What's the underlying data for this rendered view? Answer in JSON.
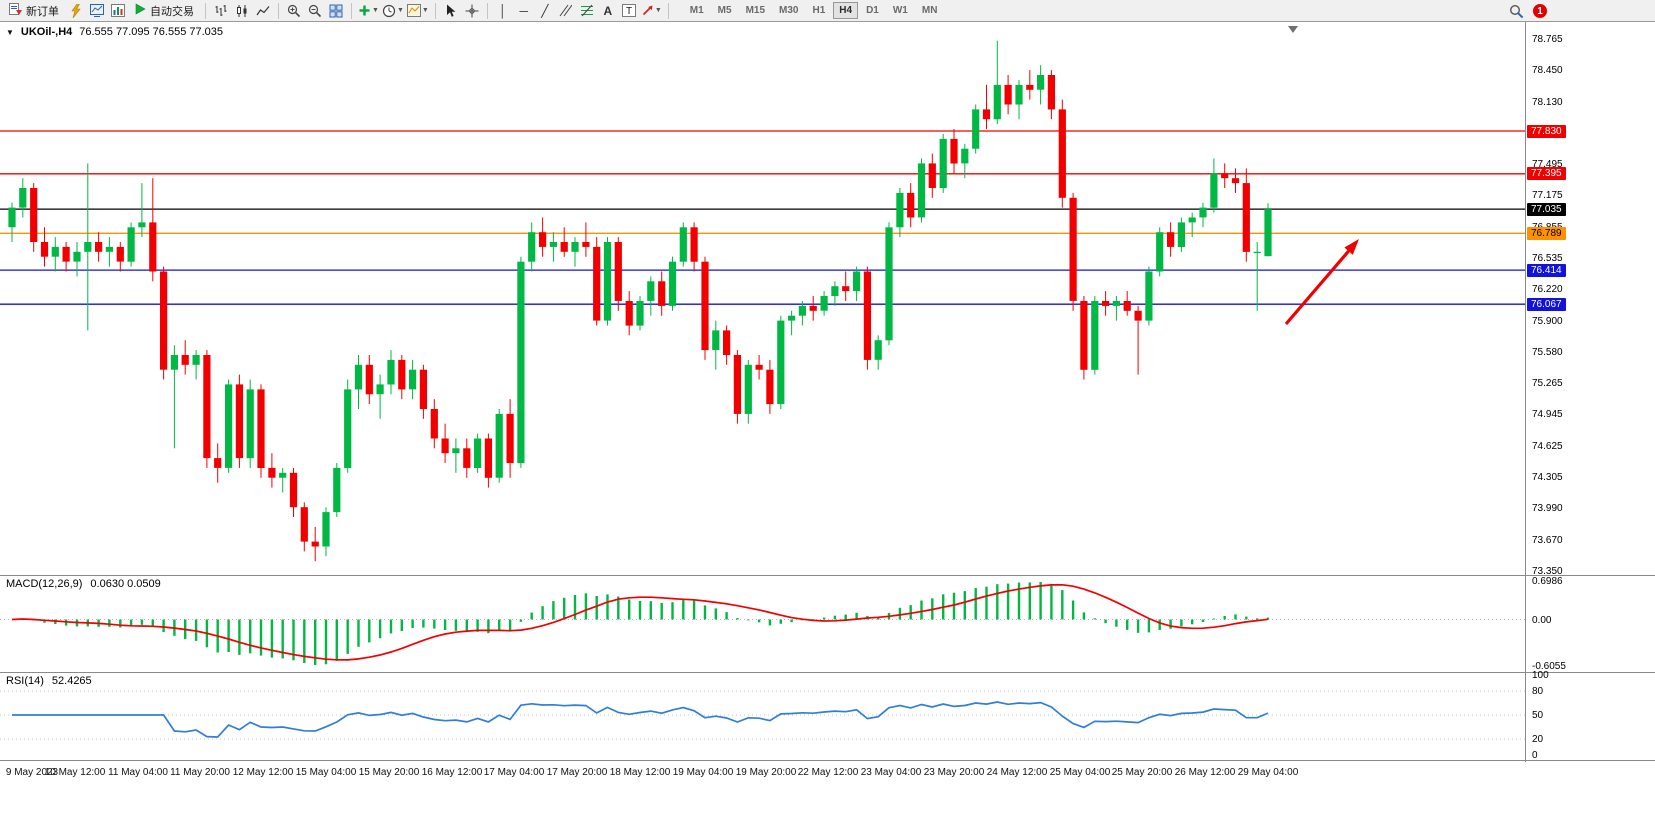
{
  "toolbar": {
    "new_order_label": "新订单",
    "auto_trading_label": "自动交易",
    "timeframes": [
      "M1",
      "M5",
      "M15",
      "M30",
      "H1",
      "H4",
      "D1",
      "W1",
      "MN"
    ],
    "active_timeframe": "H4",
    "notification_count": "1"
  },
  "chart": {
    "type": "candlestick",
    "symbol_label": "UKOil-,H4",
    "ohlc_label": "76.555 77.095 76.555 77.035",
    "up_color": "#00b843",
    "down_color": "#f20000",
    "price_max": 78.94,
    "price_min": 73.31,
    "price_axis": [
      "78.765",
      "78.450",
      "78.130",
      "77.495",
      "77.175",
      "76.855",
      "76.535",
      "76.220",
      "75.900",
      "75.580",
      "75.265",
      "74.945",
      "74.625",
      "74.305",
      "73.990",
      "73.670",
      "73.350"
    ],
    "hlines": [
      {
        "price": 77.83,
        "label": "77.830",
        "color": "#f20000",
        "text_color": "#ffffff"
      },
      {
        "price": 77.395,
        "label": "77.395",
        "color": "#f20000",
        "text_color": "#ffffff"
      },
      {
        "price": 77.035,
        "label": "77.035",
        "color": "#000000",
        "text_color": "#ffffff"
      },
      {
        "price": 76.789,
        "label": "76.789",
        "color": "#ff9000",
        "text_color": "#000000"
      },
      {
        "price": 76.414,
        "label": "76.414",
        "color": "#1212dd",
        "text_color": "#ffffff"
      },
      {
        "price": 76.067,
        "label": "76.067",
        "color": "#1212dd",
        "text_color": "#ffffff"
      }
    ],
    "candles": [
      [
        76.85,
        77.1,
        76.7,
        77.05
      ],
      [
        77.05,
        77.35,
        76.95,
        77.25
      ],
      [
        77.25,
        77.3,
        76.6,
        76.7
      ],
      [
        76.7,
        76.85,
        76.45,
        76.55
      ],
      [
        76.55,
        76.75,
        76.4,
        76.65
      ],
      [
        76.65,
        76.7,
        76.4,
        76.5
      ],
      [
        76.5,
        76.7,
        76.35,
        76.6
      ],
      [
        76.6,
        77.5,
        75.8,
        76.7
      ],
      [
        76.7,
        76.8,
        76.5,
        76.6
      ],
      [
        76.6,
        76.75,
        76.45,
        76.65
      ],
      [
        76.65,
        76.7,
        76.4,
        76.5
      ],
      [
        76.5,
        76.9,
        76.45,
        76.85
      ],
      [
        76.85,
        77.3,
        76.75,
        76.9
      ],
      [
        76.9,
        77.35,
        76.3,
        76.4
      ],
      [
        76.4,
        76.45,
        75.3,
        75.4
      ],
      [
        75.4,
        75.65,
        74.6,
        75.55
      ],
      [
        75.55,
        75.7,
        75.35,
        75.45
      ],
      [
        75.45,
        75.6,
        75.3,
        75.55
      ],
      [
        75.55,
        75.6,
        74.4,
        74.5
      ],
      [
        74.5,
        74.65,
        74.25,
        74.4
      ],
      [
        74.4,
        75.3,
        74.35,
        75.25
      ],
      [
        75.25,
        75.35,
        74.4,
        74.5
      ],
      [
        74.5,
        75.3,
        74.4,
        75.2
      ],
      [
        75.2,
        75.25,
        74.3,
        74.4
      ],
      [
        74.4,
        74.55,
        74.2,
        74.3
      ],
      [
        74.3,
        74.4,
        74.15,
        74.35
      ],
      [
        74.35,
        74.4,
        73.9,
        74.0
      ],
      [
        74.0,
        74.05,
        73.55,
        73.65
      ],
      [
        73.65,
        73.8,
        73.45,
        73.6
      ],
      [
        73.6,
        74.0,
        73.5,
        73.95
      ],
      [
        73.95,
        74.45,
        73.9,
        74.4
      ],
      [
        74.4,
        75.3,
        74.35,
        75.2
      ],
      [
        75.2,
        75.55,
        75.0,
        75.45
      ],
      [
        75.45,
        75.55,
        75.05,
        75.15
      ],
      [
        75.15,
        75.35,
        74.9,
        75.25
      ],
      [
        75.25,
        75.6,
        75.15,
        75.5
      ],
      [
        75.5,
        75.55,
        75.1,
        75.2
      ],
      [
        75.2,
        75.5,
        75.1,
        75.4
      ],
      [
        75.4,
        75.45,
        74.9,
        75.0
      ],
      [
        75.0,
        75.1,
        74.6,
        74.7
      ],
      [
        74.7,
        74.85,
        74.45,
        74.55
      ],
      [
        74.55,
        74.7,
        74.35,
        74.6
      ],
      [
        74.6,
        74.7,
        74.3,
        74.4
      ],
      [
        74.4,
        74.75,
        74.35,
        74.7
      ],
      [
        74.7,
        74.75,
        74.2,
        74.3
      ],
      [
        74.3,
        75.0,
        74.25,
        74.95
      ],
      [
        74.95,
        75.1,
        74.3,
        74.45
      ],
      [
        74.45,
        76.55,
        74.4,
        76.5
      ],
      [
        76.5,
        76.9,
        76.4,
        76.8
      ],
      [
        76.8,
        76.95,
        76.55,
        76.65
      ],
      [
        76.65,
        76.8,
        76.5,
        76.7
      ],
      [
        76.7,
        76.85,
        76.55,
        76.6
      ],
      [
        76.6,
        76.75,
        76.45,
        76.7
      ],
      [
        76.7,
        76.9,
        76.55,
        76.65
      ],
      [
        76.65,
        76.75,
        75.85,
        75.9
      ],
      [
        75.9,
        76.75,
        75.85,
        76.7
      ],
      [
        76.7,
        76.75,
        76.0,
        76.1
      ],
      [
        76.1,
        76.2,
        75.75,
        75.85
      ],
      [
        75.85,
        76.15,
        75.8,
        76.1
      ],
      [
        76.1,
        76.35,
        75.95,
        76.3
      ],
      [
        76.3,
        76.4,
        75.95,
        76.05
      ],
      [
        76.05,
        76.55,
        76.0,
        76.5
      ],
      [
        76.5,
        76.9,
        76.45,
        76.85
      ],
      [
        76.85,
        76.9,
        76.4,
        76.5
      ],
      [
        76.5,
        76.55,
        75.5,
        75.6
      ],
      [
        75.6,
        75.9,
        75.4,
        75.8
      ],
      [
        75.8,
        75.85,
        75.45,
        75.55
      ],
      [
        75.55,
        75.6,
        74.85,
        74.95
      ],
      [
        74.95,
        75.5,
        74.85,
        75.45
      ],
      [
        75.45,
        75.55,
        75.3,
        75.4
      ],
      [
        75.4,
        75.5,
        74.95,
        75.05
      ],
      [
        75.05,
        75.95,
        75.0,
        75.9
      ],
      [
        75.9,
        76.0,
        75.75,
        75.95
      ],
      [
        75.95,
        76.1,
        75.85,
        76.05
      ],
      [
        76.05,
        76.15,
        75.9,
        76.0
      ],
      [
        76.0,
        76.2,
        75.95,
        76.15
      ],
      [
        76.15,
        76.3,
        76.05,
        76.25
      ],
      [
        76.25,
        76.4,
        76.1,
        76.2
      ],
      [
        76.2,
        76.45,
        76.1,
        76.4
      ],
      [
        76.4,
        76.45,
        75.4,
        75.5
      ],
      [
        75.5,
        75.75,
        75.4,
        75.7
      ],
      [
        75.7,
        76.9,
        75.65,
        76.85
      ],
      [
        76.85,
        77.25,
        76.75,
        77.2
      ],
      [
        77.2,
        77.3,
        76.85,
        76.95
      ],
      [
        76.95,
        77.55,
        76.9,
        77.5
      ],
      [
        77.5,
        77.6,
        77.15,
        77.25
      ],
      [
        77.25,
        77.8,
        77.2,
        77.75
      ],
      [
        77.75,
        77.85,
        77.4,
        77.5
      ],
      [
        77.5,
        77.7,
        77.35,
        77.65
      ],
      [
        77.65,
        78.1,
        77.6,
        78.05
      ],
      [
        78.05,
        78.3,
        77.85,
        77.95
      ],
      [
        77.95,
        78.75,
        77.9,
        78.3
      ],
      [
        78.3,
        78.4,
        78.0,
        78.1
      ],
      [
        78.1,
        78.35,
        77.95,
        78.3
      ],
      [
        78.3,
        78.45,
        78.15,
        78.25
      ],
      [
        78.25,
        78.5,
        78.1,
        78.4
      ],
      [
        78.4,
        78.45,
        77.95,
        78.05
      ],
      [
        78.05,
        78.15,
        77.05,
        77.15
      ],
      [
        77.15,
        77.2,
        76.0,
        76.1
      ],
      [
        76.1,
        76.15,
        75.3,
        75.4
      ],
      [
        75.4,
        76.15,
        75.35,
        76.1
      ],
      [
        76.1,
        76.2,
        75.95,
        76.05
      ],
      [
        76.05,
        76.15,
        75.9,
        76.1
      ],
      [
        76.1,
        76.2,
        75.95,
        76.0
      ],
      [
        76.0,
        76.05,
        75.35,
        75.9
      ],
      [
        75.9,
        76.45,
        75.85,
        76.4
      ],
      [
        76.4,
        76.85,
        76.35,
        76.8
      ],
      [
        76.8,
        76.9,
        76.55,
        76.65
      ],
      [
        76.65,
        76.95,
        76.6,
        76.9
      ],
      [
        76.9,
        77.0,
        76.75,
        76.95
      ],
      [
        76.95,
        77.1,
        76.85,
        77.05
      ],
      [
        77.05,
        77.55,
        77.0,
        77.4
      ],
      [
        77.4,
        77.5,
        77.25,
        77.35
      ],
      [
        77.35,
        77.45,
        77.2,
        77.3
      ],
      [
        77.3,
        77.45,
        76.5,
        76.6
      ],
      [
        76.6,
        76.7,
        76.0,
        76.6
      ],
      [
        76.555,
        77.095,
        76.555,
        77.035
      ]
    ]
  },
  "macd": {
    "label": "MACD(12,26,9)",
    "values_label": "0.0630 0.0509",
    "fast": 12,
    "slow": 26,
    "smoothing": 9,
    "bar_color": "#00b843",
    "signal_color": "#f20000",
    "axis": [
      "0.6986",
      "0.00",
      "-0.6055"
    ]
  },
  "rsi": {
    "label": "RSI(14)",
    "value_label": "52.4265",
    "period": 14,
    "color": "#2f7ed8",
    "levels": [
      80,
      50,
      20
    ],
    "axis": [
      "100",
      "80",
      "50",
      "20",
      "0"
    ]
  },
  "time_axis": [
    "9 May 2023",
    "10 May 12:00",
    "11 May 04:00",
    "11 May 20:00",
    "12 May 12:00",
    "15 May 04:00",
    "15 May 20:00",
    "16 May 12:00",
    "17 May 04:00",
    "17 May 20:00",
    "18 May 12:00",
    "19 May 04:00",
    "19 May 20:00",
    "22 May 12:00",
    "23 May 04:00",
    "23 May 20:00",
    "24 May 12:00",
    "25 May 04:00",
    "25 May 20:00",
    "26 May 12:00",
    "29 May 04:00"
  ],
  "annotation": {
    "arrow_color": "#f20000"
  }
}
